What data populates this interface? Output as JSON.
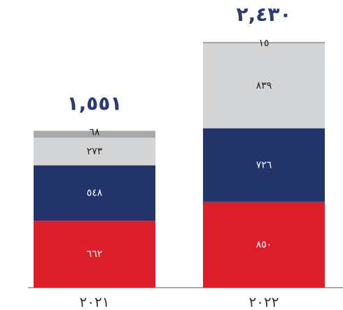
{
  "chart_data": {
    "type": "stacked-bar",
    "categories": [
      "٢٠٢١",
      "٢٠٢٢"
    ],
    "totals": [
      1551,
      2430
    ],
    "total_labels": [
      "١,٥٥١",
      "٢,٤٣٠"
    ],
    "series": [
      {
        "color": "#dc1f2a",
        "values": [
          662,
          850
        ],
        "value_labels": [
          "٦٦٢",
          "٨٥٠"
        ]
      },
      {
        "color": "#22346a",
        "values": [
          548,
          726
        ],
        "value_labels": [
          "٥٤٨",
          "٧٢٦"
        ]
      },
      {
        "color": "#d3d4d6",
        "values": [
          273,
          839
        ],
        "value_labels": [
          "٢٧٣",
          "٨٣٩"
        ]
      },
      {
        "color": "#a7a8aa",
        "values": [
          68,
          15
        ],
        "value_labels": [
          "٦٨",
          "١٥"
        ]
      }
    ]
  }
}
